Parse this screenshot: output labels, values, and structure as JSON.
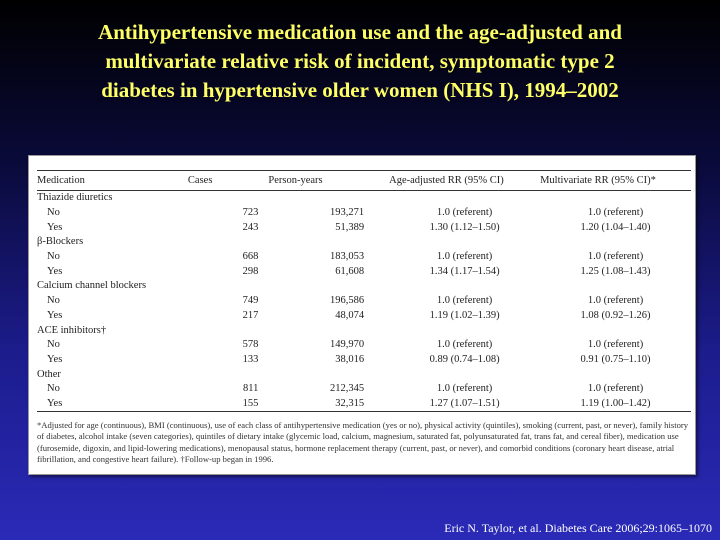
{
  "title": {
    "lines": [
      "Antihypertensive medication use and the age-adjusted and",
      "multivariate relative risk of incident, symptomatic type 2",
      "diabetes in hypertensive older women (NHS I), 1994–2002"
    ]
  },
  "table": {
    "headers": {
      "medication": "Medication",
      "cases": "Cases",
      "person_years": "Person-years",
      "age_adjusted": "Age-adjusted RR (95% CI)",
      "multivariate": "Multivariate RR (95% CI)*"
    },
    "groups": [
      {
        "name": "Thiazide diuretics",
        "rows": [
          {
            "label": "No",
            "cases": "723",
            "person_years": "193,271",
            "age_adjusted": "1.0 (referent)",
            "multivariate": "1.0 (referent)"
          },
          {
            "label": "Yes",
            "cases": "243",
            "person_years": "51,389",
            "age_adjusted": "1.30 (1.12–1.50)",
            "multivariate": "1.20 (1.04–1.40)"
          }
        ]
      },
      {
        "name": "β-Blockers",
        "rows": [
          {
            "label": "No",
            "cases": "668",
            "person_years": "183,053",
            "age_adjusted": "1.0 (referent)",
            "multivariate": "1.0 (referent)"
          },
          {
            "label": "Yes",
            "cases": "298",
            "person_years": "61,608",
            "age_adjusted": "1.34 (1.17–1.54)",
            "multivariate": "1.25 (1.08–1.43)"
          }
        ]
      },
      {
        "name": "Calcium channel blockers",
        "rows": [
          {
            "label": "No",
            "cases": "749",
            "person_years": "196,586",
            "age_adjusted": "1.0 (referent)",
            "multivariate": "1.0 (referent)"
          },
          {
            "label": "Yes",
            "cases": "217",
            "person_years": "48,074",
            "age_adjusted": "1.19 (1.02–1.39)",
            "multivariate": "1.08 (0.92–1.26)"
          }
        ]
      },
      {
        "name": "ACE inhibitors†",
        "rows": [
          {
            "label": "No",
            "cases": "578",
            "person_years": "149,970",
            "age_adjusted": "1.0 (referent)",
            "multivariate": "1.0 (referent)"
          },
          {
            "label": "Yes",
            "cases": "133",
            "person_years": "38,016",
            "age_adjusted": "0.89 (0.74–1.08)",
            "multivariate": "0.91 (0.75–1.10)"
          }
        ]
      },
      {
        "name": "Other",
        "rows": [
          {
            "label": "No",
            "cases": "811",
            "person_years": "212,345",
            "age_adjusted": "1.0 (referent)",
            "multivariate": "1.0 (referent)"
          },
          {
            "label": "Yes",
            "cases": "155",
            "person_years": "32,315",
            "age_adjusted": "1.27 (1.07–1.51)",
            "multivariate": "1.19 (1.00–1.42)"
          }
        ]
      }
    ],
    "footnote": "*Adjusted for age (continuous), BMI (continuous), use of each class of antihypertensive medication (yes or no), physical activity (quintiles), smoking (current, past, or never), family history of diabetes, alcohol intake (seven categories), quintiles of dietary intake (glycemic load, calcium, magnesium, saturated fat, polyunsaturated fat, trans fat, and cereal fiber), medication use (furosemide, digoxin, and lipid-lowering medications), menopausal status, hormone replacement therapy (current, past, or never), and comorbid conditions (coronary heart disease, atrial fibrillation, and congestive heart failure). †Follow-up began in 1996."
  },
  "citation": "Eric N. Taylor, et al. Diabetes Care 2006;29:1065–1070"
}
